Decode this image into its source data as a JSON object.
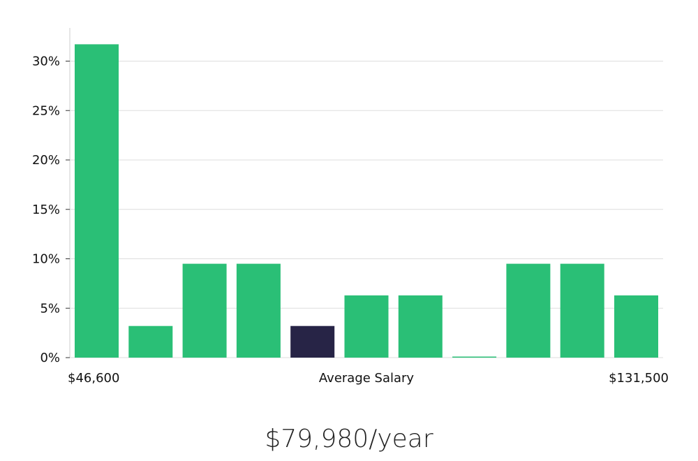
{
  "chart_data": {
    "type": "bar",
    "title": "",
    "xlabel": "Average Salary",
    "ylabel": "",
    "x_range_labels": {
      "min": "$46,600",
      "max": "$131,500"
    },
    "ylim": [
      0,
      33
    ],
    "yticks": [
      {
        "value": 0,
        "label": "0%"
      },
      {
        "value": 5,
        "label": "5%"
      },
      {
        "value": 10,
        "label": "10%"
      },
      {
        "value": 15,
        "label": "15%"
      },
      {
        "value": 20,
        "label": "20%"
      },
      {
        "value": 25,
        "label": "25%"
      },
      {
        "value": 30,
        "label": "30%"
      }
    ],
    "values": [
      31.7,
      3.2,
      9.5,
      9.5,
      3.2,
      6.3,
      6.3,
      0.1,
      9.5,
      9.5,
      6.3
    ],
    "highlight_index": 4,
    "grid": true,
    "colors": {
      "bar": "#2abf76",
      "highlight": "#272446",
      "grid": "#dddddd",
      "axis": "#cccccc"
    }
  },
  "summary": {
    "salary": "$79,980/year"
  }
}
